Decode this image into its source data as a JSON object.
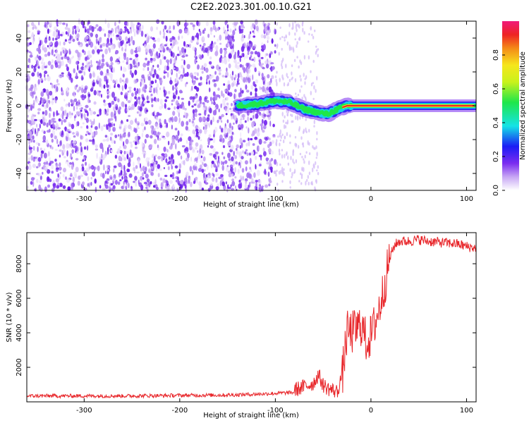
{
  "title": "C2E2.2023.301.00.10.G21",
  "chart_data": [
    {
      "type": "heatmap",
      "xlabel": "Height of straight line (km)",
      "ylabel": "Frequency (Hz)",
      "xlim": [
        -360,
        110
      ],
      "ylim": [
        -50,
        50
      ],
      "xticks": [
        -300,
        -200,
        -100,
        0,
        100
      ],
      "yticks": [
        -40,
        -20,
        0,
        20,
        40
      ],
      "colorbar": {
        "label": "Normalized spectral amplitude",
        "range": [
          0.0,
          1.0
        ],
        "ticks": [
          0.0,
          0.2,
          0.4,
          0.6,
          0.8
        ],
        "colormap": "rainbow (white-violet-blue-cyan-green-yellow-orange-red-magenta)"
      },
      "signal_track": {
        "x": [
          -140,
          -120,
          -100,
          -85,
          -70,
          -55,
          -45,
          -35,
          -25,
          -15,
          0,
          30,
          60,
          110
        ],
        "y": [
          0,
          1,
          3,
          2,
          -2,
          -4,
          -5,
          -2,
          0,
          0,
          0,
          0,
          0,
          0
        ],
        "amplitude": [
          0.25,
          0.3,
          0.35,
          0.35,
          0.35,
          0.4,
          0.45,
          0.6,
          0.75,
          0.85,
          0.9,
          0.9,
          0.9,
          0.9
        ]
      },
      "noise_region": {
        "x_range": [
          -360,
          -100
        ],
        "density": "high"
      },
      "colors": {
        "noise": "#7a2cf0",
        "trace_core": "#e8262a",
        "trace_edge": "#2fe65a"
      }
    },
    {
      "type": "line",
      "xlabel": "Height of straight line (km)",
      "ylabel": "SNR (10 * v/v)",
      "xlim": [
        -360,
        110
      ],
      "ylim": [
        0,
        9800
      ],
      "xticks": [
        -300,
        -200,
        -100,
        0,
        100
      ],
      "yticks": [
        2000,
        4000,
        6000,
        8000
      ],
      "series": [
        {
          "color": "#e8262a",
          "x": [
            -360,
            -300,
            -250,
            -200,
            -150,
            -120,
            -100,
            -80,
            -70,
            -60,
            -55,
            -50,
            -45,
            -40,
            -35,
            -30,
            -25,
            -20,
            -15,
            -10,
            -5,
            0,
            5,
            10,
            15,
            20,
            25,
            30,
            40,
            50,
            60,
            70,
            80,
            90,
            100,
            110
          ],
          "y": [
            300,
            300,
            300,
            330,
            350,
            400,
            450,
            500,
            700,
            900,
            1400,
            800,
            600,
            500,
            400,
            1500,
            4000,
            4000,
            4200,
            4500,
            3500,
            3800,
            4700,
            5700,
            7000,
            8400,
            9100,
            9300,
            9300,
            9400,
            9300,
            9250,
            9200,
            9150,
            9000,
            8900
          ]
        }
      ]
    }
  ]
}
